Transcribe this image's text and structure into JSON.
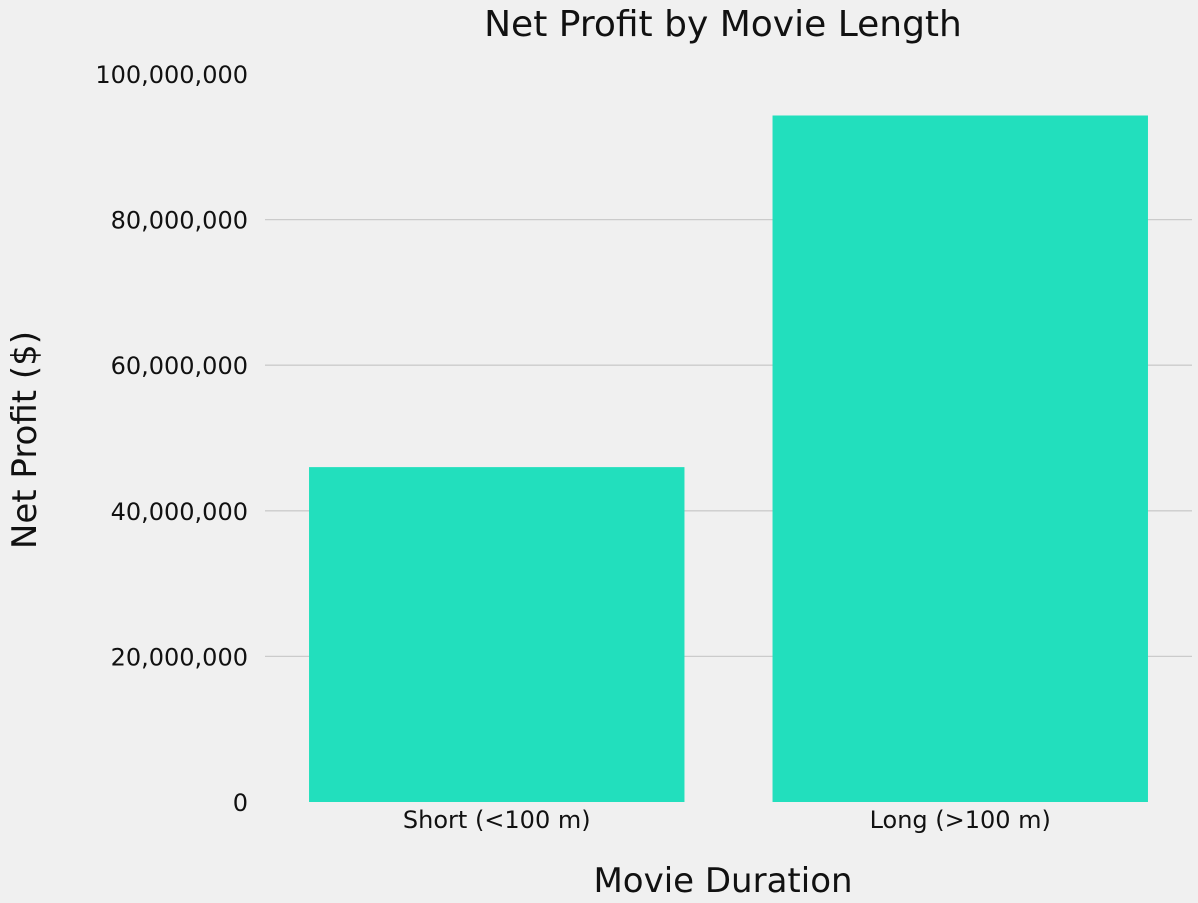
{
  "chart_data": {
    "type": "bar",
    "title": "Net Profit by Movie Length",
    "xlabel": "Movie Duration",
    "ylabel": "Net Profit ($)",
    "categories": [
      "Short (<100 m)",
      "Long (>100 m)"
    ],
    "values": [
      46000000,
      94300000
    ],
    "ylim": [
      0,
      100000000
    ],
    "yticks": [
      0,
      20000000,
      40000000,
      60000000,
      80000000,
      100000000
    ],
    "ytick_labels": [
      "0",
      "20,000,000",
      "40,000,000",
      "60,000,000",
      "80,000,000",
      "100,000,000"
    ],
    "grid": "horizontal",
    "bar_color": "#22dfbd",
    "background_color": "#f0f0f0",
    "grid_color": "#cbcbcb"
  }
}
